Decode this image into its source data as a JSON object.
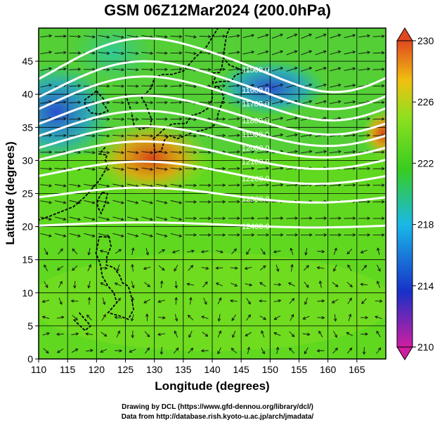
{
  "chart_data": {
    "type": "heatmap",
    "title": "GSM 06Z12Mar2024 (200.0hPa)",
    "xlabel": "Longitude (degrees)",
    "ylabel": "Latitude  (degrees)",
    "xlim": [
      110,
      170
    ],
    "ylim": [
      0,
      50
    ],
    "x_ticks": [
      "110",
      "115",
      "120",
      "125",
      "130",
      "135",
      "140",
      "145",
      "150",
      "155",
      "160",
      "165"
    ],
    "y_ticks": [
      "0",
      "5",
      "10",
      "15",
      "20",
      "25",
      "30",
      "35",
      "40",
      "45"
    ],
    "colorbar": {
      "min": 210,
      "max": 230,
      "tick_labels": [
        "210",
        "214",
        "218",
        "222",
        "226",
        "230"
      ],
      "colors": [
        "#d01ea0",
        "#1830c8",
        "#19b8e8",
        "#38cc20",
        "#8ee020",
        "#f0c010",
        "#e04820"
      ]
    },
    "contour_levels": [
      {
        "label": "11500.0",
        "lat_at_150": 43
      },
      {
        "label": "11600.0",
        "lat_at_150": 40
      },
      {
        "label": "11700.0",
        "lat_at_150": 38
      },
      {
        "label": "11800.0",
        "lat_at_150": 35.5
      },
      {
        "label": "11900.0",
        "lat_at_150": 33.5
      },
      {
        "label": "12000.0",
        "lat_at_150": 31.5
      },
      {
        "label": "12100.0",
        "lat_at_150": 29.5
      },
      {
        "label": "12200.0",
        "lat_at_150": 27
      },
      {
        "label": "12300.0",
        "lat_at_150": 24
      },
      {
        "label": "12400.0",
        "lat_at_150": 20
      }
    ],
    "grid": true
  },
  "credits": {
    "line1": "Drawing by DCL (https://www.gfd-dennou.org/library/dcl/)",
    "line2": "Data from http://database.rish.kyoto-u.ac.jp/arch/jmadata/"
  }
}
